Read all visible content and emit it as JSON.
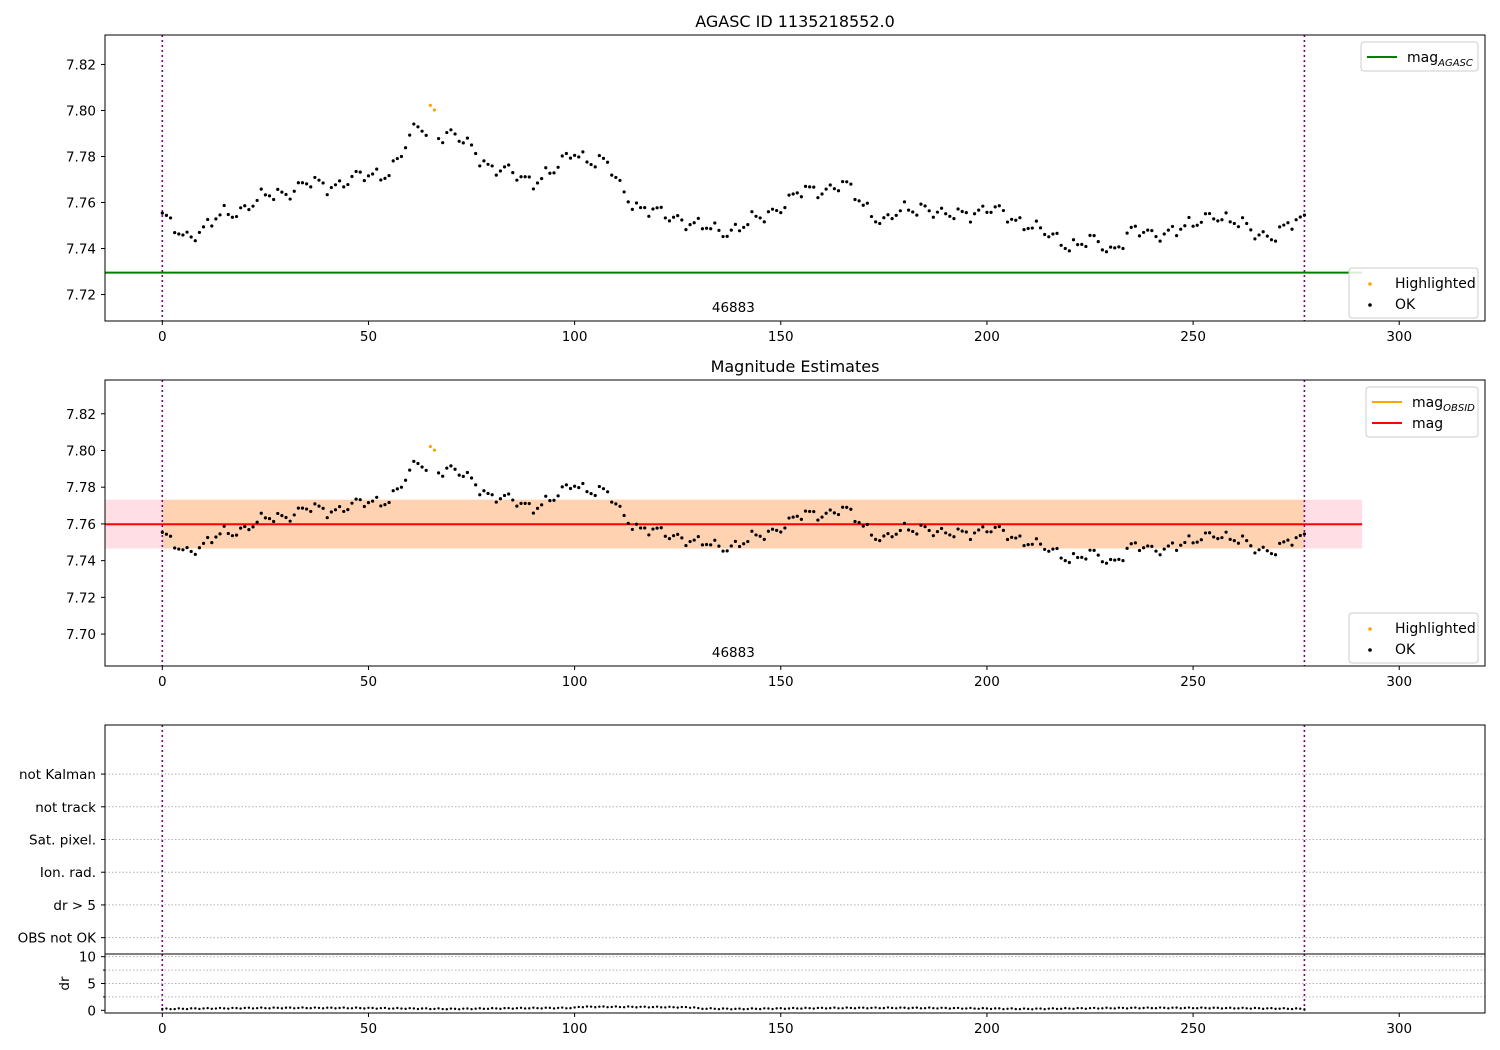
{
  "chart_data": [
    {
      "type": "scatter",
      "title": "AGASC ID 1135218552.0",
      "xlim": [
        -13.9,
        320.8
      ],
      "ylim": [
        7.7085,
        7.8328
      ],
      "xticks": [
        0,
        50,
        100,
        150,
        200,
        250,
        300
      ],
      "yticks": [
        7.72,
        7.74,
        7.76,
        7.78,
        7.8,
        7.82
      ],
      "grid": false,
      "hlines": [
        {
          "name": "mag_AGASC",
          "value": 7.7295,
          "color": "#008000"
        }
      ],
      "vlines": [
        0,
        277
      ],
      "annotation": {
        "text": "46883",
        "x": 138.5
      },
      "legends": [
        {
          "placement": "upper right",
          "entries": [
            {
              "label": "mag",
              "sub": "AGASC",
              "kind": "line",
              "color": "#008000"
            }
          ]
        },
        {
          "placement": "lower right",
          "entries": [
            {
              "label": "Highlighted",
              "kind": "point",
              "color": "#ffa500"
            },
            {
              "label": "OK",
              "kind": "point",
              "color": "#000000"
            }
          ]
        }
      ],
      "series": [
        {
          "name": "OK",
          "color": "#000000"
        },
        {
          "name": "Highlighted",
          "color": "#ffa500",
          "points": [
            [
              65,
              7.8022
            ],
            [
              66,
              7.8002
            ]
          ]
        }
      ]
    },
    {
      "type": "scatter",
      "title": "Magnitude Estimates",
      "xlim": [
        -13.9,
        320.8
      ],
      "ylim": [
        7.6826,
        7.8384
      ],
      "xticks": [
        0,
        50,
        100,
        150,
        200,
        250,
        300
      ],
      "yticks": [
        7.7,
        7.72,
        7.74,
        7.76,
        7.78,
        7.8,
        7.82
      ],
      "grid": false,
      "hlines": [
        {
          "name": "mag",
          "value": 7.7598,
          "color": "#ff0000",
          "band": [
            7.7466,
            7.7732
          ]
        }
      ],
      "vlines": [
        0,
        277
      ],
      "annotation": {
        "text": "46883",
        "x": 138.5
      },
      "legends": [
        {
          "placement": "upper right",
          "entries": [
            {
              "label": "mag",
              "sub": "OBSID",
              "kind": "line",
              "color": "#ffa500"
            },
            {
              "label": "mag",
              "kind": "line",
              "color": "#ff0000"
            }
          ]
        },
        {
          "placement": "lower right",
          "entries": [
            {
              "label": "Highlighted",
              "kind": "point",
              "color": "#ffa500"
            },
            {
              "label": "OK",
              "kind": "point",
              "color": "#000000"
            }
          ]
        }
      ],
      "series": [
        {
          "name": "OK",
          "color": "#000000"
        },
        {
          "name": "Highlighted",
          "color": "#ffa500",
          "points": [
            [
              65,
              7.8022
            ],
            [
              66,
              7.8002
            ]
          ]
        }
      ]
    },
    {
      "type": "scatter",
      "xlim": [
        -13.9,
        320.8
      ],
      "ylim": [
        -0.5,
        6.5
      ],
      "categories": [
        "OBS not OK",
        "dr > 5",
        "Ion. rad.",
        "Sat. pixel.",
        "not track",
        "not Kalman"
      ],
      "grid": true,
      "vlines": [
        0,
        277
      ]
    },
    {
      "type": "scatter",
      "ylabel": "dr",
      "xlim": [
        -13.9,
        320.8
      ],
      "ylim": [
        -0.5,
        10.5
      ],
      "xticks": [
        0,
        50,
        100,
        150,
        200,
        250,
        300
      ],
      "yticks": [
        0,
        5,
        10
      ],
      "grid": true,
      "vlines": [
        0,
        277
      ],
      "series": [
        {
          "name": "dr",
          "color": "#000000"
        }
      ]
    }
  ]
}
